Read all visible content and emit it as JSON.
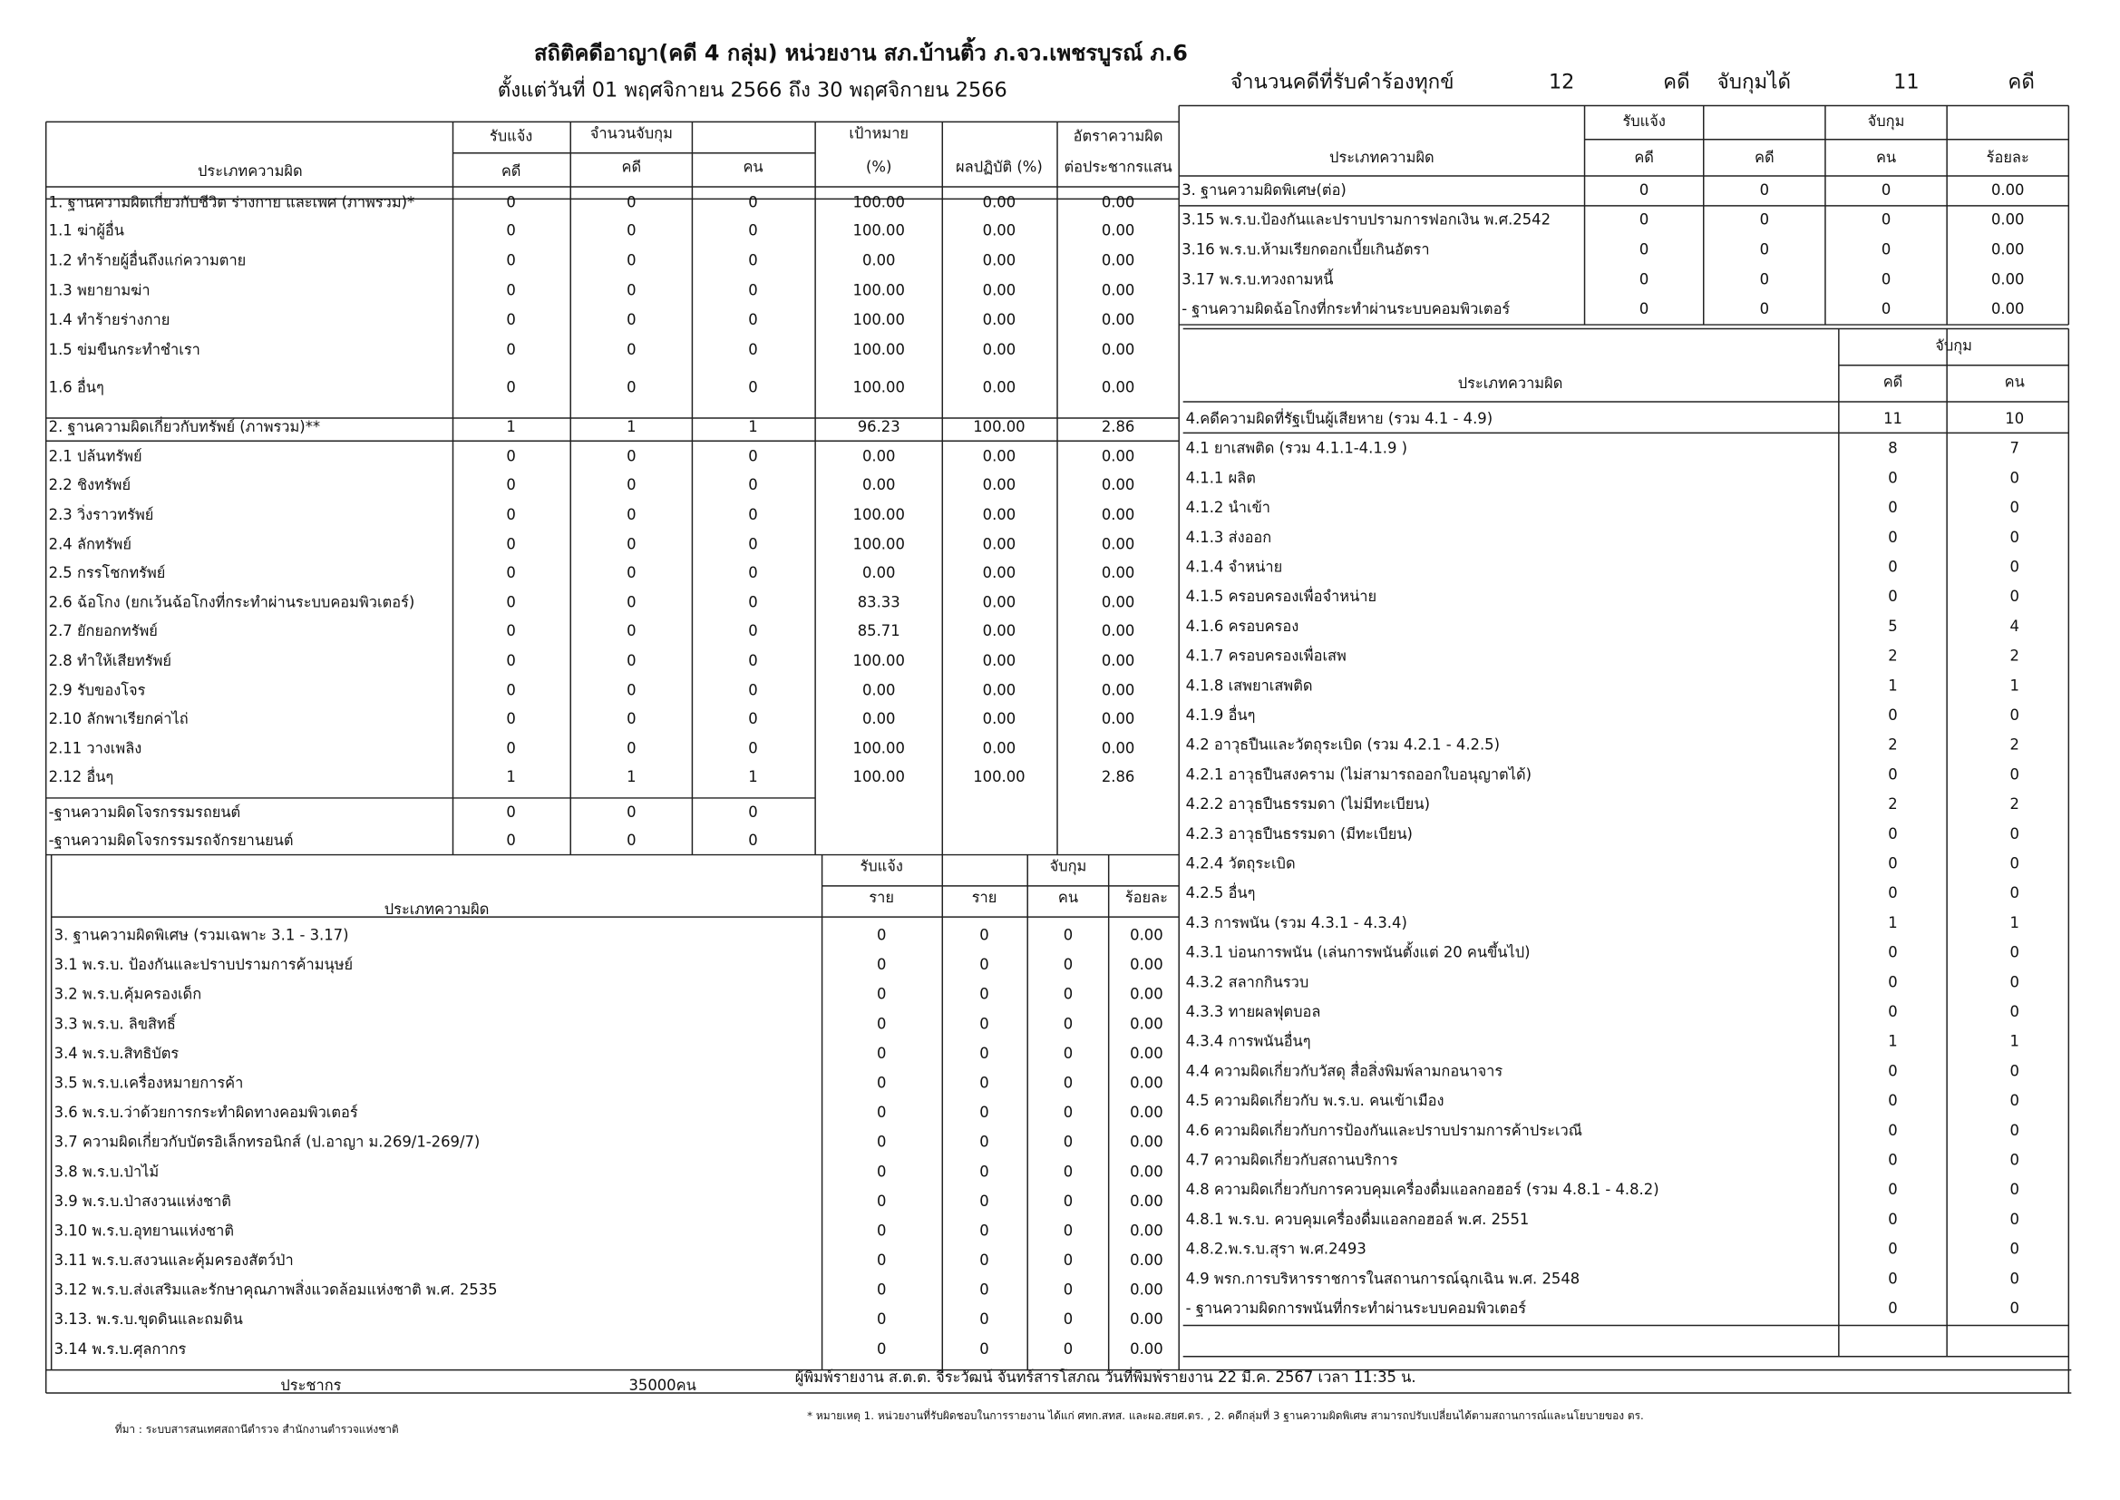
{
  "header": {
    "title": "สถิติคดีอาญา(คดี 4 กลุ่ม) หน่วยงาน สภ.บ้านติ้ว ภ.จว.เพชรบูรณ์ ภ.6",
    "subtitle": "ตั้งแต่วันที่ 01 พฤศจิกายน 2566 ถึง 30 พฤศจิกายน 2566",
    "stats": [
      "จำนวนคดีที่รับคำร้องทุกข์",
      "12",
      "คดี",
      "จับกุมได้",
      "11",
      "คดี"
    ]
  },
  "table1": {
    "header": [
      "ประเภทความผิด",
      "รับแจ้ง",
      "จำนวนจับกุม",
      "เป้าหมาย",
      "ผลปฏิบัติ (%)",
      "อัตราความผิด",
      "ต่อประชากรแสน",
      "คดี",
      "คดี",
      "คน",
      "(%)"
    ],
    "rows": [
      [
        "1. ฐานความผิดเกี่ยวกับชีวิต ร่างกาย และเพศ (ภาพรวม)*",
        "0",
        "0",
        "0",
        "100.00",
        "0.00",
        "0.00"
      ],
      [
        "1.1 ฆ่าผู้อื่น",
        "0",
        "0",
        "0",
        "100.00",
        "0.00",
        "0.00"
      ],
      [
        "1.2 ทำร้ายผู้อื่นถึงแก่ความตาย",
        "0",
        "0",
        "0",
        "0.00",
        "0.00",
        "0.00"
      ],
      [
        "1.3 พยายามฆ่า",
        "0",
        "0",
        "0",
        "100.00",
        "0.00",
        "0.00"
      ],
      [
        "1.4 ทำร้ายร่างกาย",
        "0",
        "0",
        "0",
        "100.00",
        "0.00",
        "0.00"
      ],
      [
        "1.5 ข่มขืนกระทำชำเรา",
        "0",
        "0",
        "0",
        "100.00",
        "0.00",
        "0.00"
      ],
      [
        "1.6 อื่นๆ",
        "0",
        "0",
        "0",
        "100.00",
        "0.00",
        "0.00"
      ],
      [
        "2. ฐานความผิดเกี่ยวกับทรัพย์ (ภาพรวม)**",
        "1",
        "1",
        "1",
        "96.23",
        "100.00",
        "2.86"
      ],
      [
        "2.1 ปล้นทรัพย์",
        "0",
        "0",
        "0",
        "0.00",
        "0.00",
        "0.00"
      ],
      [
        "2.2 ชิงทรัพย์",
        "0",
        "0",
        "0",
        "0.00",
        "0.00",
        "0.00"
      ],
      [
        "2.3 วิ่งราวทรัพย์",
        "0",
        "0",
        "0",
        "100.00",
        "0.00",
        "0.00"
      ],
      [
        "2.4 ลักทรัพย์",
        "0",
        "0",
        "0",
        "100.00",
        "0.00",
        "0.00"
      ],
      [
        "2.5 กรรโชกทรัพย์",
        "0",
        "0",
        "0",
        "0.00",
        "0.00",
        "0.00"
      ],
      [
        "2.6 ฉ้อโกง (ยกเว้นฉ้อโกงที่กระทำผ่านระบบคอมพิวเตอร์)",
        "0",
        "0",
        "0",
        "83.33",
        "0.00",
        "0.00"
      ],
      [
        "2.7 ยักยอกทรัพย์",
        "0",
        "0",
        "0",
        "85.71",
        "0.00",
        "0.00"
      ],
      [
        "2.8 ทำให้เสียทรัพย์",
        "0",
        "0",
        "0",
        "100.00",
        "0.00",
        "0.00"
      ],
      [
        "2.9 รับของโจร",
        "0",
        "0",
        "0",
        "0.00",
        "0.00",
        "0.00"
      ],
      [
        "2.10 ลักพาเรียกค่าไถ่",
        "0",
        "0",
        "0",
        "0.00",
        "0.00",
        "0.00"
      ],
      [
        "2.11 วางเพลิง",
        "0",
        "0",
        "0",
        "100.00",
        "0.00",
        "0.00"
      ],
      [
        "2.12 อื่นๆ",
        "1",
        "1",
        "1",
        "100.00",
        "100.00",
        "2.86"
      ],
      [
        "-ฐานความผิดโจรกรรมรถยนต์",
        "0",
        "0",
        "0",
        null,
        null,
        null
      ],
      [
        "-ฐานความผิดโจรกรรมรถจักรยานยนต์",
        "0",
        "0",
        "0",
        null,
        null,
        null
      ]
    ]
  },
  "table2": {
    "header": [
      "ประเภทความผิด",
      "รับแจ้ง",
      "จับกุม",
      "ราย",
      "ราย",
      "คน",
      "ร้อยละ"
    ],
    "rows": [
      [
        "3. ฐานความผิดพิเศษ (รวมเฉพาะ 3.1 - 3.17)",
        "0",
        "0",
        "0",
        "0.00"
      ],
      [
        "3.1 พ.ร.บ. ป้องกันและปราบปรามการค้ามนุษย์",
        "0",
        "0",
        "0",
        "0.00"
      ],
      [
        "3.2 พ.ร.บ.คุ้มครองเด็ก",
        "0",
        "0",
        "0",
        "0.00"
      ],
      [
        "3.3 พ.ร.บ. ลิขสิทธิ์",
        "0",
        "0",
        "0",
        "0.00"
      ],
      [
        "3.4 พ.ร.บ.สิทธิบัตร",
        "0",
        "0",
        "0",
        "0.00"
      ],
      [
        "3.5 พ.ร.บ.เครื่องหมายการค้า",
        "0",
        "0",
        "0",
        "0.00"
      ],
      [
        "3.6 พ.ร.บ.ว่าด้วยการกระทำผิดทางคอมพิวเตอร์",
        "0",
        "0",
        "0",
        "0.00"
      ],
      [
        "3.7 ความผิดเกี่ยวกับบัตรอิเล็กทรอนิกส์ (ป.อาญา ม.269/1-269/7)",
        "0",
        "0",
        "0",
        "0.00"
      ],
      [
        "3.8 พ.ร.บ.ป่าไม้",
        "0",
        "0",
        "0",
        "0.00"
      ],
      [
        "3.9 พ.ร.บ.ป่าสงวนแห่งชาติ",
        "0",
        "0",
        "0",
        "0.00"
      ],
      [
        "3.10 พ.ร.บ.อุทยานแห่งชาติ",
        "0",
        "0",
        "0",
        "0.00"
      ],
      [
        "3.11 พ.ร.บ.สงวนและคุ้มครองสัตว์ป่า",
        "0",
        "0",
        "0",
        "0.00"
      ],
      [
        "3.12 พ.ร.บ.ส่งเสริมและรักษาคุณภาพสิ่งแวดล้อมแห่งชาติ พ.ศ. 2535",
        "0",
        "0",
        "0",
        "0.00"
      ],
      [
        "3.13. พ.ร.บ.ขุดดินและถมดิน",
        "0",
        "0",
        "0",
        "0.00"
      ],
      [
        "3.14 พ.ร.บ.ศุลกากร",
        "0",
        "0",
        "0",
        "0.00"
      ]
    ]
  },
  "table3": {
    "header": [
      "ประเภทความผิด",
      "รับแจ้ง",
      "จับกุม",
      "คดี",
      "คดี",
      "คน",
      "ร้อยละ"
    ],
    "rows": [
      [
        "3. ฐานความผิดพิเศษ(ต่อ)",
        "0",
        "0",
        "0",
        "0.00"
      ],
      [
        "3.15 พ.ร.บ.ป้องกันและปราบปรามการฟอกเงิน พ.ศ.2542",
        "0",
        "0",
        "0",
        "0.00"
      ],
      [
        "3.16 พ.ร.บ.ห้ามเรียกดอกเบี้ยเกินอัตรา",
        "0",
        "0",
        "0",
        "0.00"
      ],
      [
        "3.17 พ.ร.บ.ทวงถามหนี้",
        "0",
        "0",
        "0",
        "0.00"
      ],
      [
        "- ฐานความผิดฉ้อโกงที่กระทำผ่านระบบคอมพิวเตอร์",
        "0",
        "0",
        "0",
        "0.00"
      ]
    ]
  },
  "table4": {
    "header": [
      "ประเภทความผิด",
      "จับกุม",
      "คดี",
      "คน"
    ],
    "rows": [
      [
        "4.คดีความผิดที่รัฐเป็นผู้เสียหาย (รวม 4.1 - 4.9)",
        "11",
        "10"
      ],
      [
        "4.1 ยาเสพติด (รวม 4.1.1-4.1.9 )",
        "8",
        "7"
      ],
      [
        "4.1.1 ผลิต",
        "0",
        "0"
      ],
      [
        "4.1.2 นำเข้า",
        "0",
        "0"
      ],
      [
        "4.1.3 ส่งออก",
        "0",
        "0"
      ],
      [
        "4.1.4 จำหน่าย",
        "0",
        "0"
      ],
      [
        "4.1.5 ครอบครองเพื่อจำหน่าย",
        "0",
        "0"
      ],
      [
        "4.1.6 ครอบครอง",
        "5",
        "4"
      ],
      [
        "4.1.7 ครอบครองเพื่อเสพ",
        "2",
        "2"
      ],
      [
        "4.1.8 เสพยาเสพติด",
        "1",
        "1"
      ],
      [
        "4.1.9 อื่นๆ",
        "0",
        "0"
      ],
      [
        "4.2 อาวุธปืนและวัตถุระเบิด (รวม 4.2.1 - 4.2.5)",
        "2",
        "2"
      ],
      [
        "4.2.1 อาวุธปืนสงคราม (ไม่สามารถออกใบอนุญาตได้)",
        "0",
        "0"
      ],
      [
        "4.2.2 อาวุธปืนธรรมดา (ไม่มีทะเบียน)",
        "2",
        "2"
      ],
      [
        "4.2.3 อาวุธปืนธรรมดา (มีทะเบียน)",
        "0",
        "0"
      ],
      [
        "4.2.4 วัตถุระเบิด",
        "0",
        "0"
      ],
      [
        "4.2.5 อื่นๆ",
        "0",
        "0"
      ],
      [
        "4.3 การพนัน (รวม 4.3.1 - 4.3.4)",
        "1",
        "1"
      ],
      [
        "4.3.1 บ่อนการพนัน (เล่นการพนันตั้งแต่ 20 คนขึ้นไป)",
        "0",
        "0"
      ],
      [
        "4.3.2 สลากกินรวบ",
        "0",
        "0"
      ],
      [
        "4.3.3 ทายผลฟุตบอล",
        "0",
        "0"
      ],
      [
        "4.3.4 การพนันอื่นๆ",
        "1",
        "1"
      ],
      [
        "4.4 ความผิดเกี่ยวกับวัสดุ สื่อสิ่งพิมพ์ลามกอนาจาร",
        "0",
        "0"
      ],
      [
        "4.5 ความผิดเกี่ยวกับ พ.ร.บ. คนเข้าเมือง",
        "0",
        "0"
      ],
      [
        "4.6 ความผิดเกี่ยวกับการป้องกันและปราบปรามการค้าประเวณี",
        "0",
        "0"
      ],
      [
        "4.7 ความผิดเกี่ยวกับสถานบริการ",
        "0",
        "0"
      ],
      [
        "4.8 ความผิดเกี่ยวกับการควบคุมเครื่องดื่มแอลกอฮอร์ (รวม 4.8.1 - 4.8.2)",
        "0",
        "0"
      ],
      [
        "4.8.1 พ.ร.บ. ควบคุมเครื่องดื่มแอลกอฮอล์ พ.ศ. 2551",
        "0",
        "0"
      ],
      [
        "4.8.2.พ.ร.บ.สุรา พ.ศ.2493",
        "0",
        "0"
      ],
      [
        "4.9 พรก.การบริหารราชการในสถานการณ์ฉุกเฉิน พ.ศ. 2548",
        "0",
        "0"
      ],
      [
        "- ฐานความผิดการพนันที่กระทำผ่านระบบคอมพิวเตอร์",
        "0",
        "0"
      ]
    ]
  },
  "footer": {
    "population_label": "ประชากร",
    "population": "35000คน",
    "printed_by": "ผู้พิมพ์รายงาน ส.ต.ต. จีระวัฒน์ จันทร์สารโสภณ วันที่พิมพ์รายงาน 22 มี.ค. 2567  เวลา 11:35 น.",
    "source": "ที่มา : ระบบสารสนเทศสถานีตำรวจ  สำนักงานตำรวจแห่งชาติ",
    "note": "* หมายเหตุ   1. หน่วยงานที่รับผิดชอบในการรายงาน ได้แก่ ศทก.สทส. และผอ.สยศ.ตร. , 2. คดีกลุ่มที่ 3 ฐานความผิดพิเศษ สามารถปรับเปลี่ยนได้ตามสถานการณ์และนโยบายของ ตร."
  }
}
